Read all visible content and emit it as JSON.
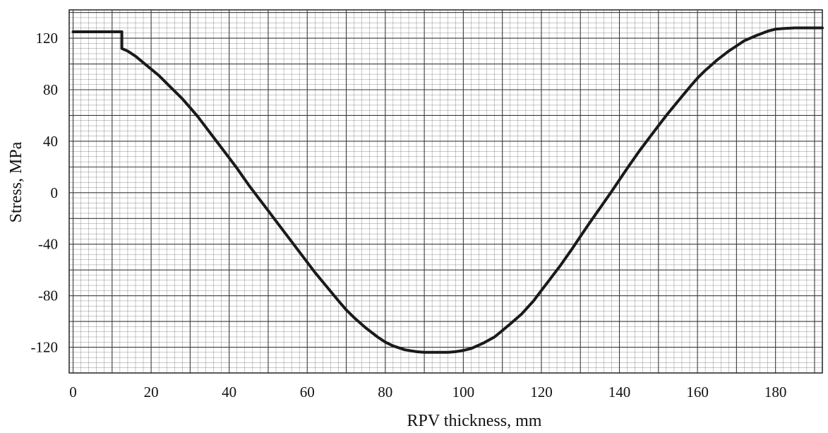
{
  "chart_data": {
    "type": "line",
    "title": "",
    "xlabel": "RPV thickness, mm",
    "ylabel": "Stress, MPa",
    "xlim": [
      -1,
      192
    ],
    "ylim": [
      -140,
      142
    ],
    "x_ticks": [
      0,
      20,
      40,
      60,
      80,
      100,
      120,
      140,
      160,
      180
    ],
    "y_ticks": [
      120,
      80,
      40,
      0,
      -40,
      -80,
      -120
    ],
    "grid": true,
    "legend": "none",
    "line_color": "#1a1a1a",
    "grid_color": "#3a3a3a",
    "series": [
      {
        "x": [
          0,
          12.5,
          12.5,
          14,
          16,
          18,
          20,
          22,
          25,
          28,
          30,
          32,
          35,
          38,
          40,
          42,
          45,
          48,
          50,
          52,
          55,
          58,
          60,
          62,
          65,
          68,
          70,
          72,
          75,
          78,
          80,
          82,
          85,
          88,
          90,
          92,
          95,
          96,
          98,
          100,
          102,
          105,
          108,
          110,
          112,
          115,
          118,
          120,
          122,
          125,
          128,
          130,
          132,
          135,
          138,
          140,
          142,
          145,
          148,
          150,
          152,
          155,
          158,
          160,
          162,
          165,
          168,
          170,
          172,
          175,
          178,
          180,
          182,
          185,
          188,
          190,
          192
        ],
        "y": [
          125,
          125,
          112,
          110,
          106,
          101,
          96,
          91,
          82,
          73,
          66,
          59,
          47,
          35,
          27,
          19,
          6,
          -6,
          -14,
          -22,
          -34,
          -46,
          -54,
          -62,
          -73,
          -84,
          -91,
          -97,
          -105,
          -112,
          -116,
          -119,
          -122,
          -123.5,
          -124,
          -124,
          -124,
          -124,
          -123.5,
          -122.5,
          -121,
          -117,
          -112,
          -107,
          -102,
          -94,
          -84,
          -76,
          -68,
          -56,
          -43,
          -34,
          -25,
          -12,
          1,
          10,
          19,
          32,
          44,
          52,
          60,
          71,
          82,
          89,
          95,
          103,
          110,
          114,
          118,
          122,
          125.5,
          127,
          127.5,
          128,
          128,
          128,
          128
        ]
      }
    ]
  }
}
